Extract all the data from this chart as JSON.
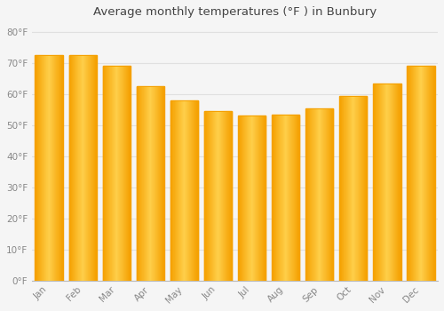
{
  "title": "Average monthly temperatures (°F ) in Bunbury",
  "months": [
    "Jan",
    "Feb",
    "Mar",
    "Apr",
    "May",
    "Jun",
    "Jul",
    "Aug",
    "Sep",
    "Oct",
    "Nov",
    "Dec"
  ],
  "values": [
    72.5,
    72.5,
    69,
    62.5,
    58,
    54.5,
    53,
    53.5,
    55.5,
    59.5,
    63.5,
    69
  ],
  "bar_color_center": "#FFD04B",
  "bar_color_edge": "#F5A000",
  "background_color": "#F5F5F5",
  "plot_bg_color": "#F5F5F5",
  "grid_color": "#E0E0E0",
  "tick_color": "#888888",
  "title_color": "#444444",
  "ytick_labels": [
    "0°F",
    "10°F",
    "20°F",
    "30°F",
    "40°F",
    "50°F",
    "60°F",
    "70°F",
    "80°F"
  ],
  "ytick_values": [
    0,
    10,
    20,
    30,
    40,
    50,
    60,
    70,
    80
  ],
  "ylim": [
    0,
    83
  ],
  "figsize": [
    5.0,
    3.5
  ],
  "dpi": 100
}
